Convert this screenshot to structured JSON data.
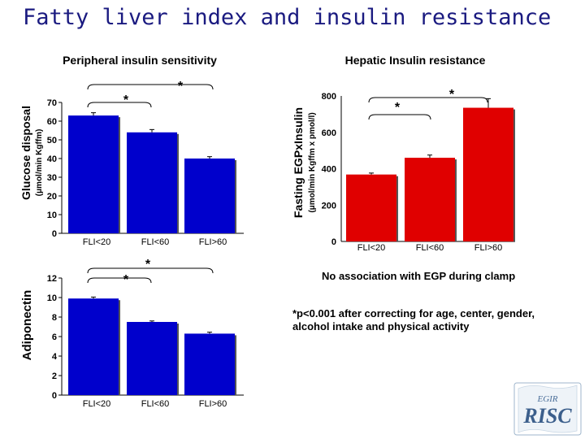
{
  "title": "Fatty liver index and insulin resistance",
  "notes": {
    "egp": "No association with EGP during clamp",
    "stats": "*p<0.001 after correcting for age, center, gender, alcohol intake and physical activity"
  },
  "logo": {
    "top_text": "EGIR",
    "main_text": "RISC"
  },
  "colors": {
    "title": "#1a1a80",
    "bar": "#e00000",
    "bar_blue": "#0000cc"
  },
  "chart_data": [
    {
      "type": "bar",
      "title": "Peripheral insulin sensitivity",
      "ylabel": "Glucose disposal",
      "ylabel_sub": "(μmol/min Kgffm)",
      "categories": [
        "FLI<20",
        "FLI<60",
        "FLI>60"
      ],
      "values": [
        63,
        54,
        40
      ],
      "errors": [
        1.5,
        1.5,
        1.0
      ],
      "ylim": [
        0,
        70
      ],
      "yticks": [
        "0",
        "10",
        "20",
        "30",
        "40",
        "50",
        "60",
        "70"
      ],
      "color": "#0000cc",
      "significance": [
        "*",
        "*"
      ]
    },
    {
      "type": "bar",
      "title": "Hepatic Insulin resistance",
      "ylabel": "Fasting EGPxInsulin",
      "ylabel_sub": "(μmol/min Kgffm x pmol/l)",
      "categories": [
        "FLI<20",
        "FLI<60",
        "FLI>60"
      ],
      "values": [
        368,
        460,
        735
      ],
      "errors": [
        8,
        15,
        50
      ],
      "ylim": [
        0,
        800
      ],
      "yticks": [
        "0",
        "200",
        "400",
        "600",
        "800"
      ],
      "color": "#e00000",
      "significance": [
        "*",
        "*"
      ]
    },
    {
      "type": "bar",
      "title": "",
      "ylabel": "Adiponectin",
      "ylabel_sub": "",
      "categories": [
        "FLI<20",
        "FLI<60",
        "FLI>60"
      ],
      "values": [
        9.9,
        7.5,
        6.3
      ],
      "errors": [
        0.15,
        0.1,
        0.15
      ],
      "ylim": [
        0,
        12
      ],
      "yticks": [
        "0",
        "2",
        "4",
        "6",
        "8",
        "10",
        "12"
      ],
      "color": "#0000cc",
      "significance": [
        "*",
        "*"
      ]
    }
  ]
}
